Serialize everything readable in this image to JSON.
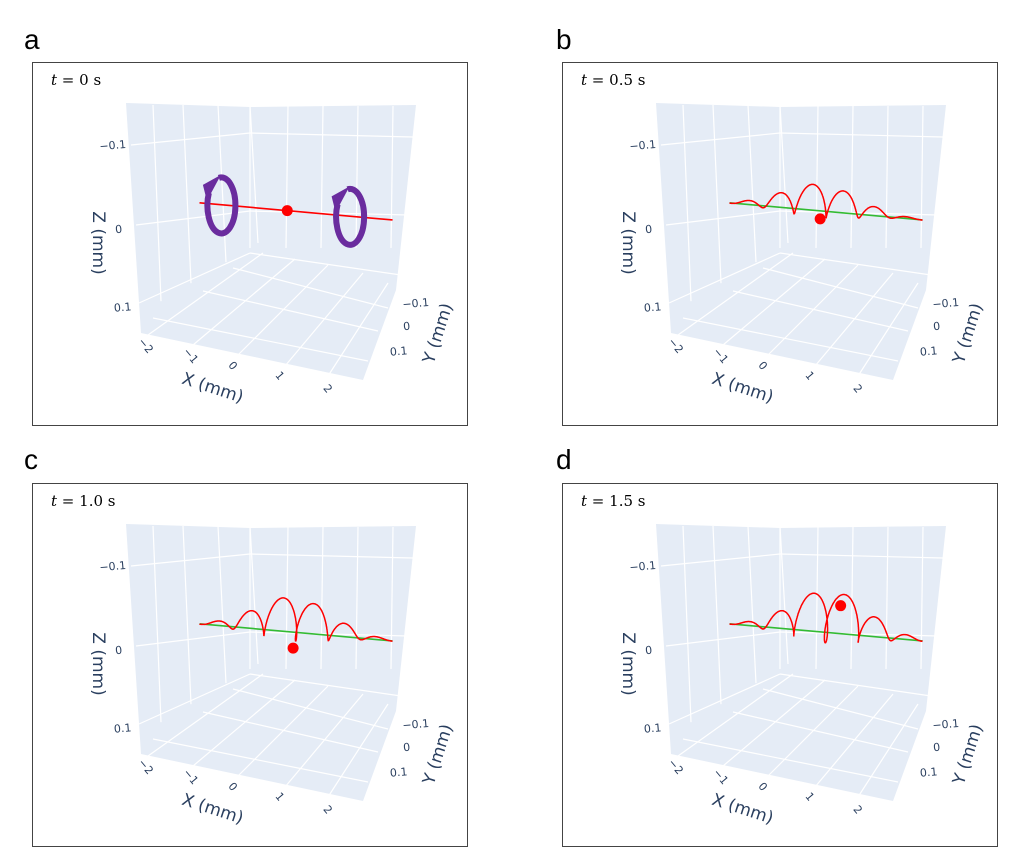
{
  "panel_letters": [
    "a",
    "b",
    "c",
    "d"
  ],
  "colors": {
    "pane": "#e5ecf6",
    "grid": "#ffffff",
    "axis_text": "#2a3f5f",
    "trajectory": "#ff0000",
    "reference_line_a": "#ff0000",
    "reference_line": "#33bb33",
    "marker": "#ff0000",
    "rotation_arrow": "#6a2c9e"
  },
  "chart_data": [
    {
      "type": "line3d",
      "panel": "a",
      "time_label": "0 s",
      "time_var": "t =",
      "xlabel": "X (mm)",
      "ylabel": "Y (mm)",
      "zlabel": "Z (mm)",
      "x_ticks": [
        "−2",
        "−1",
        "0",
        "1",
        "2"
      ],
      "y_ticks": [
        "−0.1",
        "0",
        "0.1"
      ],
      "z_ticks": [
        "−0.1",
        "0",
        "0.1"
      ],
      "z_reversed": true,
      "grid": true,
      "trajectory": {
        "x_range": [
          -1.0,
          2.3
        ],
        "max_amplitude_mm": 0,
        "envelope_center_x": 0.6
      },
      "marker": {
        "x": 0.5,
        "y": 0,
        "z": 0
      },
      "rotation_arrows": [
        {
          "x": -0.6,
          "direction": "counterclockwise"
        },
        {
          "x": 1.6,
          "direction": "counterclockwise"
        }
      ]
    },
    {
      "type": "line3d",
      "panel": "b",
      "time_label": "0.5 s",
      "time_var": "t =",
      "xlabel": "X (mm)",
      "ylabel": "Y (mm)",
      "zlabel": "Z (mm)",
      "x_ticks": [
        "−2",
        "−1",
        "0",
        "1",
        "2"
      ],
      "y_ticks": [
        "−0.1",
        "0",
        "0.1"
      ],
      "z_ticks": [
        "−0.1",
        "0",
        "0.1"
      ],
      "z_reversed": true,
      "grid": true,
      "trajectory": {
        "x_range": [
          -1.0,
          2.3
        ],
        "max_amplitude_mm": 0.025,
        "envelope_center_x": 0.55
      },
      "marker": {
        "x": 0.55,
        "y": 0,
        "z": 0.01
      }
    },
    {
      "type": "line3d",
      "panel": "c",
      "time_label": "1.0 s",
      "time_var": "t =",
      "xlabel": "X (mm)",
      "ylabel": "Y (mm)",
      "zlabel": "Z (mm)",
      "x_ticks": [
        "−2",
        "−1",
        "0",
        "1",
        "2"
      ],
      "y_ticks": [
        "−0.1",
        "0",
        "0.1"
      ],
      "z_ticks": [
        "−0.1",
        "0",
        "0.1"
      ],
      "z_reversed": true,
      "grid": true,
      "trajectory": {
        "x_range": [
          -1.0,
          2.3
        ],
        "max_amplitude_mm": 0.033,
        "envelope_center_x": 0.6
      },
      "marker": {
        "x": 0.6,
        "y": 0,
        "z": 0.02
      }
    },
    {
      "type": "line3d",
      "panel": "d",
      "time_label": "1.5 s",
      "time_var": "t =",
      "xlabel": "X (mm)",
      "ylabel": "Y (mm)",
      "zlabel": "Z (mm)",
      "x_ticks": [
        "−2",
        "−1",
        "0",
        "1",
        "2"
      ],
      "y_ticks": [
        "−0.1",
        "0",
        "0.1"
      ],
      "z_ticks": [
        "−0.1",
        "0",
        "0.1"
      ],
      "z_reversed": true,
      "grid": true,
      "trajectory": {
        "x_range": [
          -1.0,
          2.3
        ],
        "max_amplitude_mm": 0.04,
        "envelope_center_x": 0.7
      },
      "marker": {
        "x": 0.9,
        "y": 0,
        "z": -0.035
      }
    }
  ]
}
